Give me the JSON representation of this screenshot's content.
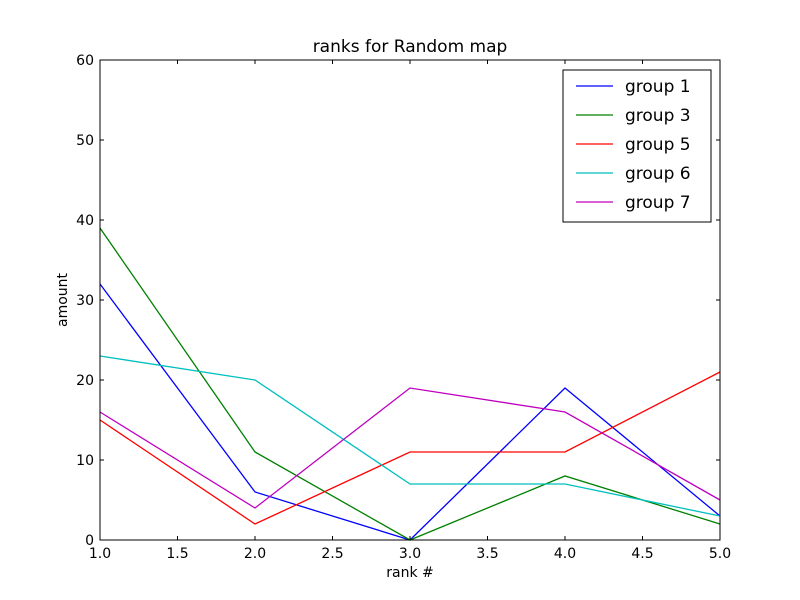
{
  "chart_data": {
    "type": "line",
    "title": "ranks for Random map",
    "xlabel": "rank #",
    "ylabel": "amount",
    "xlim": [
      1.0,
      5.0
    ],
    "ylim": [
      0,
      60
    ],
    "xticks": [
      1.0,
      1.5,
      2.0,
      2.5,
      3.0,
      3.5,
      4.0,
      4.5,
      5.0
    ],
    "xtick_labels": [
      "1.0",
      "1.5",
      "2.0",
      "2.5",
      "3.0",
      "3.5",
      "4.0",
      "4.5",
      "5.0"
    ],
    "yticks": [
      0,
      10,
      20,
      30,
      40,
      50,
      60
    ],
    "ytick_labels": [
      "0",
      "10",
      "20",
      "30",
      "40",
      "50",
      "60"
    ],
    "grid": false,
    "legend_position": "top-right",
    "x": [
      1,
      2,
      3,
      4,
      5
    ],
    "series": [
      {
        "name": "group 1",
        "color": "#0000ff",
        "values": [
          32,
          6,
          0,
          19,
          3
        ]
      },
      {
        "name": "group 3",
        "color": "#008000",
        "values": [
          39,
          11,
          0,
          8,
          2
        ]
      },
      {
        "name": "group 5",
        "color": "#ff0000",
        "values": [
          15,
          2,
          11,
          11,
          21
        ]
      },
      {
        "name": "group 6",
        "color": "#00bfbf",
        "values": [
          23,
          20,
          7,
          7,
          3
        ]
      },
      {
        "name": "group 7",
        "color": "#bf00bf",
        "values": [
          16,
          4,
          19,
          16,
          5
        ]
      }
    ]
  }
}
